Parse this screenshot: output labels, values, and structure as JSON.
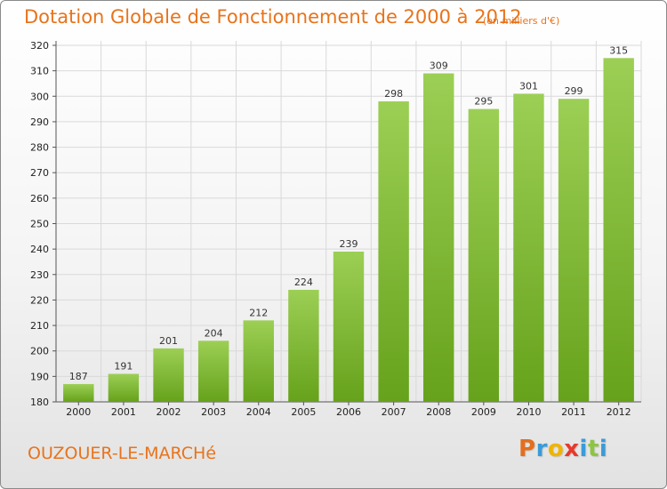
{
  "header": {
    "title": "Dotation Globale de Fonctionnement de 2000 à 2012",
    "subtitle": "(en milliers d'€)"
  },
  "footer": {
    "commune": "OUZOUER-LE-MARCHé",
    "brand_letters": [
      "P",
      "r",
      "o",
      "x",
      "i",
      "t",
      "i"
    ],
    "brand_colors": [
      "#e36f1e",
      "#3a9bd9",
      "#f0b400",
      "#e53a2c",
      "#3a9bd9",
      "#8cc63f",
      "#3a9bd9"
    ]
  },
  "colors": {
    "bar_top": "#9ccf55",
    "bar_bottom": "#66a21b",
    "accent": "#e8731b",
    "grid": "#d9d9d9"
  },
  "chart_data": {
    "type": "bar",
    "title": "Dotation Globale de Fonctionnement de 2000 à 2012",
    "subtitle": "(en milliers d'€)",
    "categories": [
      "2000",
      "2001",
      "2002",
      "2003",
      "2004",
      "2005",
      "2006",
      "2007",
      "2008",
      "2009",
      "2010",
      "2011",
      "2012"
    ],
    "values": [
      187,
      191,
      201,
      204,
      212,
      224,
      239,
      298,
      309,
      295,
      301,
      299,
      315
    ],
    "ylim": [
      180,
      320
    ],
    "yticks": [
      180,
      190,
      200,
      210,
      220,
      230,
      240,
      250,
      260,
      270,
      280,
      290,
      300,
      310,
      320
    ],
    "grid": true,
    "data_labels": true
  }
}
